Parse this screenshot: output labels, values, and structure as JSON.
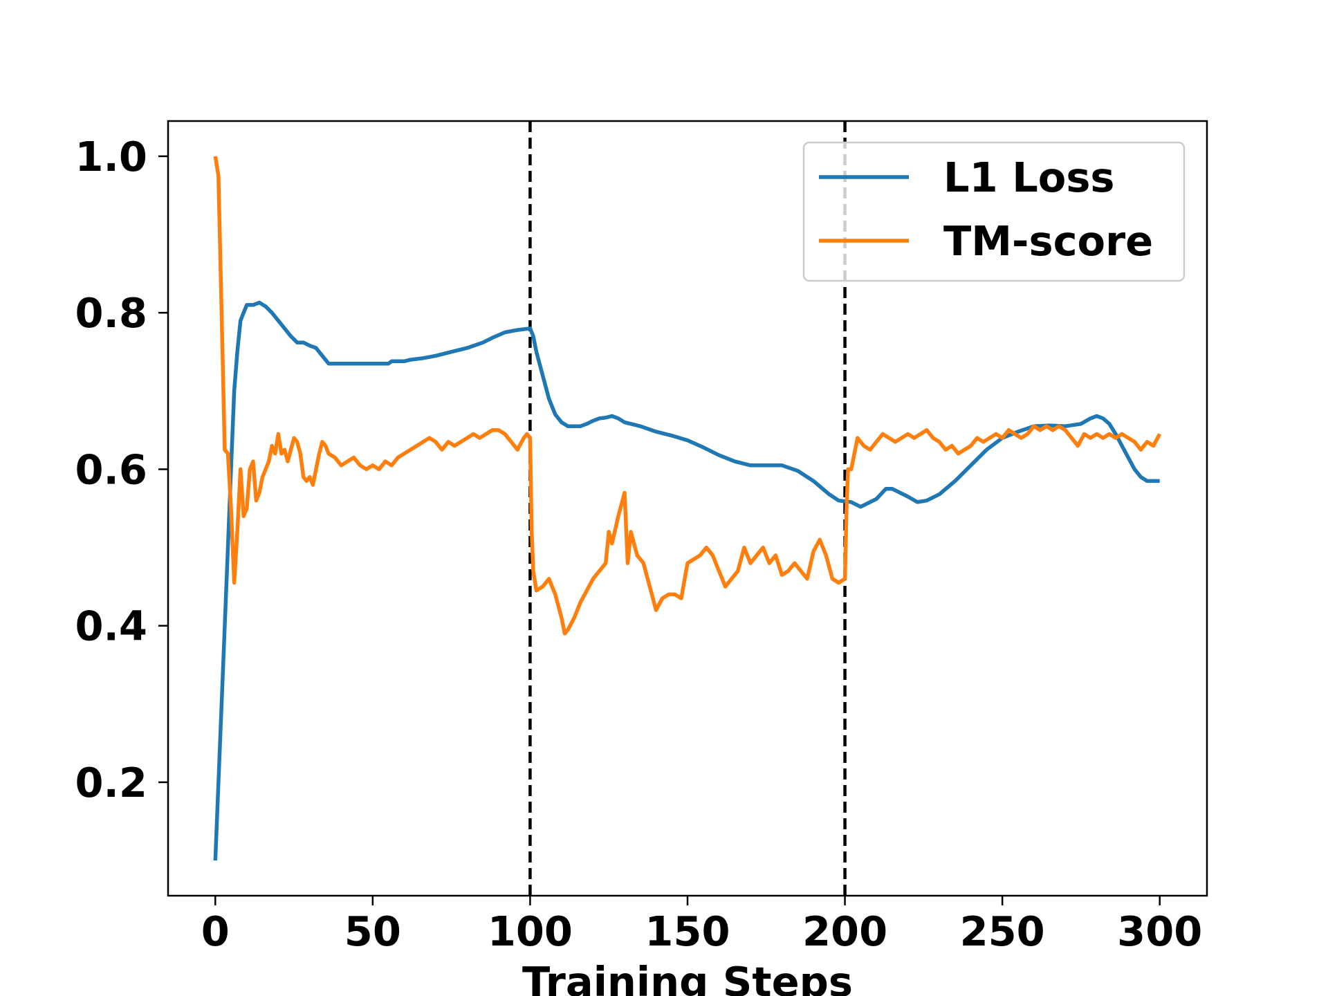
{
  "chart_data": {
    "type": "line",
    "title": "",
    "xlabel": "Training Steps",
    "ylabel": "",
    "xlim": [
      -15,
      315
    ],
    "ylim": [
      0.055,
      1.045
    ],
    "x_ticks": [
      0,
      50,
      100,
      150,
      200,
      250,
      300
    ],
    "x_tick_labels": [
      "0",
      "50",
      "100",
      "150",
      "200",
      "250",
      "300"
    ],
    "y_ticks": [
      0.2,
      0.4,
      0.6,
      0.8,
      1.0
    ],
    "y_tick_labels": [
      "0.2",
      "0.4",
      "0.6",
      "0.8",
      "1.0"
    ],
    "grid": false,
    "legend_position": "upper right",
    "vlines": [
      100,
      200
    ],
    "series": [
      {
        "name": "L1 Loss",
        "color": "#1f77b4",
        "points": [
          [
            0,
            0.1
          ],
          [
            2,
            0.3
          ],
          [
            4,
            0.5
          ],
          [
            5,
            0.6
          ],
          [
            6,
            0.7
          ],
          [
            7,
            0.75
          ],
          [
            8,
            0.79
          ],
          [
            9,
            0.8
          ],
          [
            10,
            0.81
          ],
          [
            12,
            0.81
          ],
          [
            14,
            0.813
          ],
          [
            16,
            0.808
          ],
          [
            18,
            0.8
          ],
          [
            20,
            0.79
          ],
          [
            22,
            0.78
          ],
          [
            24,
            0.77
          ],
          [
            26,
            0.762
          ],
          [
            28,
            0.762
          ],
          [
            30,
            0.758
          ],
          [
            32,
            0.755
          ],
          [
            34,
            0.745
          ],
          [
            35,
            0.74
          ],
          [
            36,
            0.735
          ],
          [
            40,
            0.735
          ],
          [
            45,
            0.735
          ],
          [
            50,
            0.735
          ],
          [
            55,
            0.735
          ],
          [
            56,
            0.738
          ],
          [
            60,
            0.738
          ],
          [
            62,
            0.74
          ],
          [
            66,
            0.742
          ],
          [
            70,
            0.745
          ],
          [
            75,
            0.75
          ],
          [
            80,
            0.755
          ],
          [
            85,
            0.762
          ],
          [
            88,
            0.768
          ],
          [
            92,
            0.775
          ],
          [
            96,
            0.778
          ],
          [
            100,
            0.78
          ],
          [
            101,
            0.77
          ],
          [
            102,
            0.75
          ],
          [
            104,
            0.72
          ],
          [
            106,
            0.69
          ],
          [
            108,
            0.67
          ],
          [
            110,
            0.66
          ],
          [
            112,
            0.655
          ],
          [
            114,
            0.655
          ],
          [
            116,
            0.655
          ],
          [
            118,
            0.658
          ],
          [
            120,
            0.662
          ],
          [
            122,
            0.665
          ],
          [
            124,
            0.666
          ],
          [
            126,
            0.668
          ],
          [
            128,
            0.665
          ],
          [
            130,
            0.66
          ],
          [
            135,
            0.655
          ],
          [
            140,
            0.648
          ],
          [
            145,
            0.643
          ],
          [
            150,
            0.637
          ],
          [
            155,
            0.628
          ],
          [
            160,
            0.618
          ],
          [
            165,
            0.61
          ],
          [
            170,
            0.605
          ],
          [
            175,
            0.605
          ],
          [
            180,
            0.605
          ],
          [
            185,
            0.598
          ],
          [
            190,
            0.585
          ],
          [
            195,
            0.568
          ],
          [
            198,
            0.56
          ],
          [
            202,
            0.558
          ],
          [
            205,
            0.552
          ],
          [
            210,
            0.562
          ],
          [
            213,
            0.575
          ],
          [
            215,
            0.575
          ],
          [
            220,
            0.565
          ],
          [
            223,
            0.558
          ],
          [
            226,
            0.56
          ],
          [
            230,
            0.568
          ],
          [
            235,
            0.585
          ],
          [
            240,
            0.605
          ],
          [
            245,
            0.625
          ],
          [
            250,
            0.64
          ],
          [
            255,
            0.648
          ],
          [
            260,
            0.655
          ],
          [
            265,
            0.656
          ],
          [
            270,
            0.655
          ],
          [
            275,
            0.658
          ],
          [
            278,
            0.665
          ],
          [
            280,
            0.668
          ],
          [
            282,
            0.665
          ],
          [
            284,
            0.658
          ],
          [
            286,
            0.645
          ],
          [
            288,
            0.63
          ],
          [
            290,
            0.615
          ],
          [
            292,
            0.6
          ],
          [
            294,
            0.59
          ],
          [
            296,
            0.585
          ],
          [
            298,
            0.585
          ],
          [
            300,
            0.585
          ]
        ]
      },
      {
        "name": "TM-score",
        "color": "#ff7f0e",
        "points": [
          [
            0,
            1.0
          ],
          [
            1,
            0.975
          ],
          [
            2,
            0.8
          ],
          [
            3,
            0.625
          ],
          [
            4,
            0.62
          ],
          [
            5,
            0.55
          ],
          [
            6,
            0.455
          ],
          [
            7,
            0.52
          ],
          [
            8,
            0.6
          ],
          [
            9,
            0.54
          ],
          [
            10,
            0.55
          ],
          [
            11,
            0.6
          ],
          [
            12,
            0.61
          ],
          [
            13,
            0.56
          ],
          [
            14,
            0.57
          ],
          [
            15,
            0.59
          ],
          [
            16,
            0.6
          ],
          [
            17,
            0.61
          ],
          [
            18,
            0.63
          ],
          [
            19,
            0.62
          ],
          [
            20,
            0.645
          ],
          [
            21,
            0.62
          ],
          [
            22,
            0.625
          ],
          [
            23,
            0.61
          ],
          [
            24,
            0.625
          ],
          [
            25,
            0.64
          ],
          [
            26,
            0.635
          ],
          [
            27,
            0.62
          ],
          [
            28,
            0.59
          ],
          [
            29,
            0.585
          ],
          [
            30,
            0.59
          ],
          [
            31,
            0.58
          ],
          [
            32,
            0.6
          ],
          [
            33,
            0.62
          ],
          [
            34,
            0.635
          ],
          [
            35,
            0.63
          ],
          [
            36,
            0.62
          ],
          [
            38,
            0.615
          ],
          [
            40,
            0.605
          ],
          [
            42,
            0.61
          ],
          [
            44,
            0.615
          ],
          [
            46,
            0.605
          ],
          [
            48,
            0.6
          ],
          [
            50,
            0.605
          ],
          [
            52,
            0.6
          ],
          [
            54,
            0.61
          ],
          [
            56,
            0.605
          ],
          [
            58,
            0.615
          ],
          [
            60,
            0.62
          ],
          [
            62,
            0.625
          ],
          [
            64,
            0.63
          ],
          [
            66,
            0.635
          ],
          [
            68,
            0.64
          ],
          [
            70,
            0.635
          ],
          [
            72,
            0.625
          ],
          [
            74,
            0.635
          ],
          [
            76,
            0.63
          ],
          [
            78,
            0.635
          ],
          [
            80,
            0.64
          ],
          [
            82,
            0.645
          ],
          [
            84,
            0.64
          ],
          [
            86,
            0.645
          ],
          [
            88,
            0.65
          ],
          [
            90,
            0.65
          ],
          [
            92,
            0.645
          ],
          [
            94,
            0.635
          ],
          [
            96,
            0.625
          ],
          [
            98,
            0.64
          ],
          [
            99,
            0.645
          ],
          [
            100,
            0.64
          ],
          [
            100.5,
            0.52
          ],
          [
            101,
            0.47
          ],
          [
            102,
            0.445
          ],
          [
            104,
            0.45
          ],
          [
            106,
            0.46
          ],
          [
            108,
            0.44
          ],
          [
            110,
            0.41
          ],
          [
            111,
            0.39
          ],
          [
            112,
            0.395
          ],
          [
            114,
            0.41
          ],
          [
            116,
            0.43
          ],
          [
            118,
            0.445
          ],
          [
            120,
            0.46
          ],
          [
            122,
            0.47
          ],
          [
            124,
            0.48
          ],
          [
            125,
            0.52
          ],
          [
            126,
            0.505
          ],
          [
            128,
            0.54
          ],
          [
            130,
            0.57
          ],
          [
            131,
            0.48
          ],
          [
            132,
            0.52
          ],
          [
            134,
            0.49
          ],
          [
            136,
            0.48
          ],
          [
            138,
            0.45
          ],
          [
            140,
            0.42
          ],
          [
            142,
            0.435
          ],
          [
            144,
            0.44
          ],
          [
            146,
            0.44
          ],
          [
            148,
            0.435
          ],
          [
            150,
            0.48
          ],
          [
            152,
            0.485
          ],
          [
            154,
            0.49
          ],
          [
            156,
            0.5
          ],
          [
            158,
            0.49
          ],
          [
            160,
            0.47
          ],
          [
            162,
            0.45
          ],
          [
            164,
            0.46
          ],
          [
            166,
            0.47
          ],
          [
            168,
            0.5
          ],
          [
            170,
            0.48
          ],
          [
            172,
            0.49
          ],
          [
            174,
            0.5
          ],
          [
            176,
            0.48
          ],
          [
            178,
            0.49
          ],
          [
            180,
            0.465
          ],
          [
            182,
            0.47
          ],
          [
            184,
            0.48
          ],
          [
            186,
            0.47
          ],
          [
            188,
            0.46
          ],
          [
            190,
            0.495
          ],
          [
            192,
            0.51
          ],
          [
            194,
            0.49
          ],
          [
            196,
            0.46
          ],
          [
            198,
            0.455
          ],
          [
            200,
            0.46
          ],
          [
            200.5,
            0.55
          ],
          [
            201,
            0.6
          ],
          [
            202,
            0.6
          ],
          [
            204,
            0.64
          ],
          [
            206,
            0.63
          ],
          [
            208,
            0.625
          ],
          [
            210,
            0.635
          ],
          [
            212,
            0.645
          ],
          [
            214,
            0.64
          ],
          [
            216,
            0.635
          ],
          [
            218,
            0.64
          ],
          [
            220,
            0.645
          ],
          [
            222,
            0.64
          ],
          [
            224,
            0.645
          ],
          [
            226,
            0.65
          ],
          [
            228,
            0.64
          ],
          [
            230,
            0.635
          ],
          [
            232,
            0.625
          ],
          [
            234,
            0.63
          ],
          [
            236,
            0.62
          ],
          [
            238,
            0.625
          ],
          [
            240,
            0.63
          ],
          [
            242,
            0.64
          ],
          [
            244,
            0.635
          ],
          [
            246,
            0.64
          ],
          [
            248,
            0.645
          ],
          [
            250,
            0.64
          ],
          [
            252,
            0.65
          ],
          [
            254,
            0.645
          ],
          [
            256,
            0.64
          ],
          [
            258,
            0.645
          ],
          [
            260,
            0.655
          ],
          [
            262,
            0.65
          ],
          [
            264,
            0.655
          ],
          [
            266,
            0.65
          ],
          [
            268,
            0.655
          ],
          [
            270,
            0.65
          ],
          [
            272,
            0.64
          ],
          [
            274,
            0.63
          ],
          [
            276,
            0.645
          ],
          [
            278,
            0.64
          ],
          [
            280,
            0.645
          ],
          [
            282,
            0.64
          ],
          [
            284,
            0.645
          ],
          [
            286,
            0.64
          ],
          [
            288,
            0.645
          ],
          [
            290,
            0.64
          ],
          [
            292,
            0.635
          ],
          [
            294,
            0.625
          ],
          [
            296,
            0.635
          ],
          [
            298,
            0.63
          ],
          [
            300,
            0.645
          ]
        ]
      }
    ]
  }
}
